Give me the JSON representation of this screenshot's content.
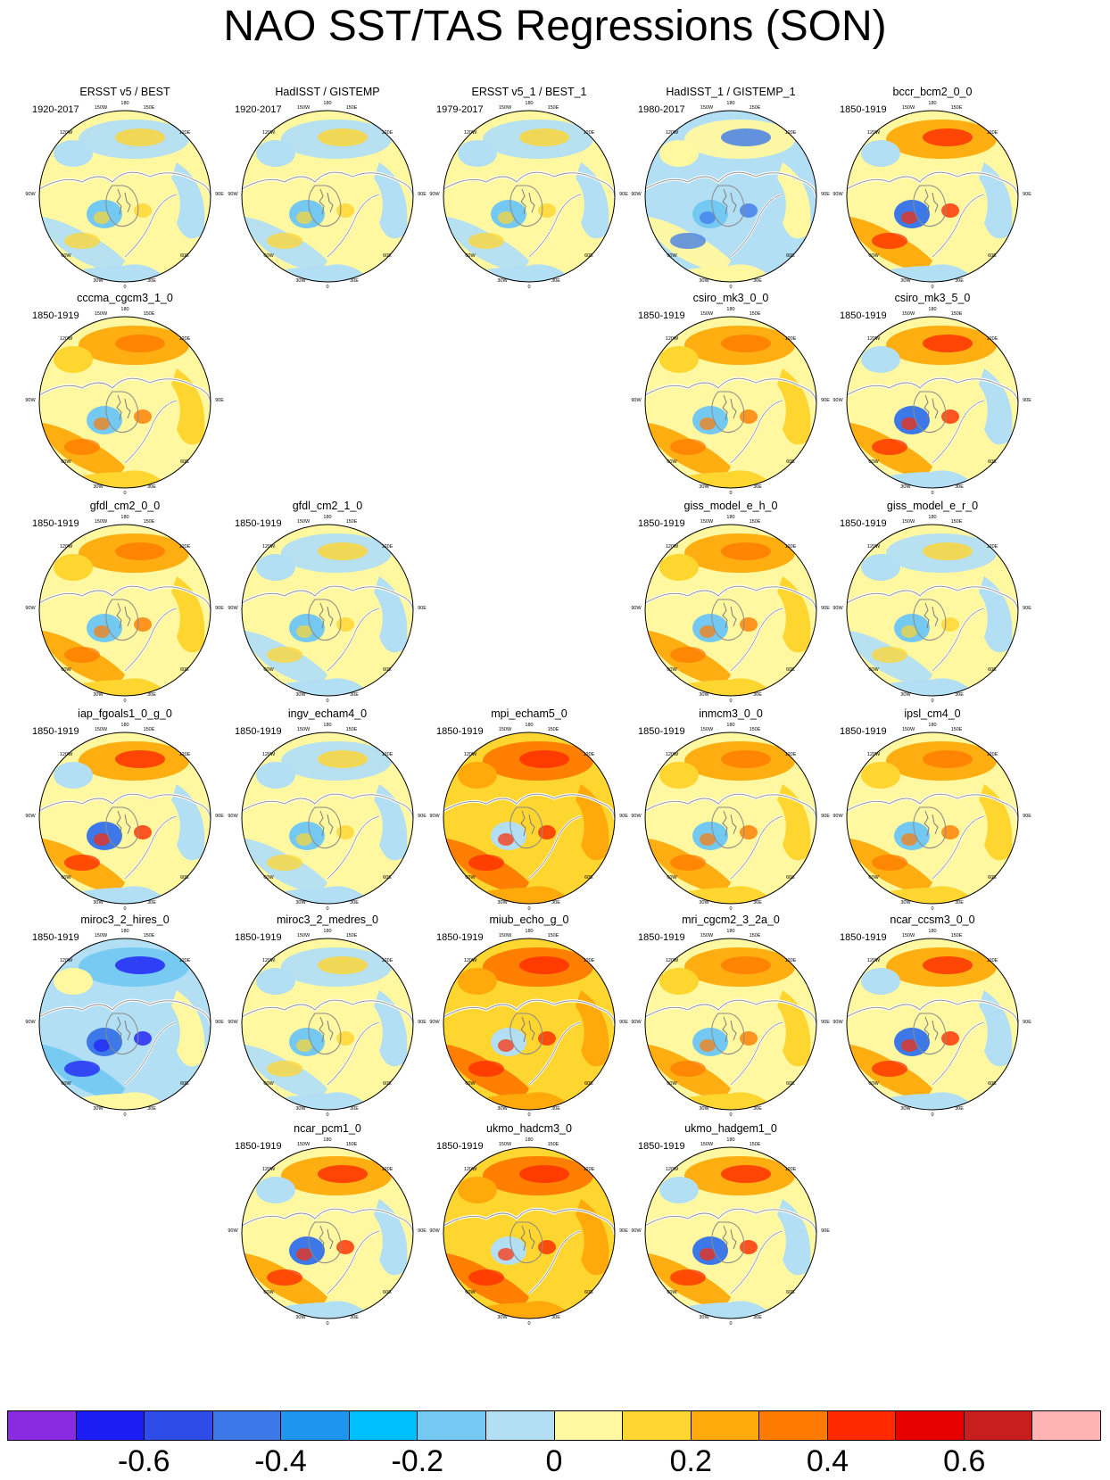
{
  "page": {
    "title": "NAO SST/TAS Regressions (SON)"
  },
  "lon_labels": [
    "180",
    "150W",
    "150E",
    "120W",
    "120E",
    "90W",
    "90E",
    "60W",
    "60E",
    "30W",
    "30E",
    "0"
  ],
  "panels": [
    {
      "title": "ERSST v5 / BEST",
      "period": "1920-2017",
      "row": 0,
      "col": 0,
      "palette": "obs"
    },
    {
      "title": "HadISST / GISTEMP",
      "period": "1920-2017",
      "row": 0,
      "col": 1,
      "palette": "obs"
    },
    {
      "title": "ERSST v5_1 / BEST_1",
      "period": "1979-2017",
      "row": 0,
      "col": 2,
      "palette": "obs"
    },
    {
      "title": "HadISST_1 / GISTEMP_1",
      "period": "1980-2017",
      "row": 0,
      "col": 3,
      "palette": "obs-blue"
    },
    {
      "title": "bccr_bcm2_0_0",
      "period": "1850-1919",
      "row": 0,
      "col": 4,
      "palette": "mixed"
    },
    {
      "title": "cccma_cgcm3_1_0",
      "period": "1850-1919",
      "row": 1,
      "col": 0,
      "palette": "warm"
    },
    {
      "title": "csiro_mk3_0_0",
      "period": "1850-1919",
      "row": 1,
      "col": 3,
      "palette": "warm"
    },
    {
      "title": "csiro_mk3_5_0",
      "period": "1850-1919",
      "row": 1,
      "col": 4,
      "palette": "mixed"
    },
    {
      "title": "gfdl_cm2_0_0",
      "period": "1850-1919",
      "row": 2,
      "col": 0,
      "palette": "warm"
    },
    {
      "title": "gfdl_cm2_1_0",
      "period": "1850-1919",
      "row": 2,
      "col": 1,
      "palette": "obs"
    },
    {
      "title": "giss_model_e_h_0",
      "period": "1850-1919",
      "row": 2,
      "col": 3,
      "palette": "warm"
    },
    {
      "title": "giss_model_e_r_0",
      "period": "1850-1919",
      "row": 2,
      "col": 4,
      "palette": "obs"
    },
    {
      "title": "iap_fgoals1_0_g_0",
      "period": "1850-1919",
      "row": 3,
      "col": 0,
      "palette": "mixed"
    },
    {
      "title": "ingv_echam4_0",
      "period": "1850-1919",
      "row": 3,
      "col": 1,
      "palette": "obs"
    },
    {
      "title": "mpi_echam5_0",
      "period": "1850-1919",
      "row": 3,
      "col": 2,
      "palette": "hot"
    },
    {
      "title": "inmcm3_0_0",
      "period": "1850-1919",
      "row": 3,
      "col": 3,
      "palette": "warm"
    },
    {
      "title": "ipsl_cm4_0",
      "period": "1850-1919",
      "row": 3,
      "col": 4,
      "palette": "warm"
    },
    {
      "title": "miroc3_2_hires_0",
      "period": "1850-1919",
      "row": 4,
      "col": 0,
      "palette": "cold"
    },
    {
      "title": "miroc3_2_medres_0",
      "period": "1850-1919",
      "row": 4,
      "col": 1,
      "palette": "obs"
    },
    {
      "title": "miub_echo_g_0",
      "period": "1850-1919",
      "row": 4,
      "col": 2,
      "palette": "hot"
    },
    {
      "title": "mri_cgcm2_3_2a_0",
      "period": "1850-1919",
      "row": 4,
      "col": 3,
      "palette": "warm"
    },
    {
      "title": "ncar_ccsm3_0_0",
      "period": "1850-1919",
      "row": 4,
      "col": 4,
      "palette": "mixed"
    },
    {
      "title": "ncar_pcm1_0",
      "period": "1850-1919",
      "row": 5,
      "col": 1,
      "palette": "mixed"
    },
    {
      "title": "ukmo_hadcm3_0",
      "period": "1850-1919",
      "row": 5,
      "col": 2,
      "palette": "hot"
    },
    {
      "title": "ukmo_hadgem1_0",
      "period": "1850-1919",
      "row": 5,
      "col": 3,
      "palette": "mixed"
    }
  ],
  "colorbar": {
    "colors": [
      "#8a2be2",
      "#1c1cf5",
      "#2f4ce8",
      "#3c78e8",
      "#1e96f0",
      "#00bfff",
      "#74c9f2",
      "#b3dff4",
      "#fff8a0",
      "#ffd530",
      "#ffaa0a",
      "#ff7a00",
      "#ff2a00",
      "#e60000",
      "#c81e1e",
      "#ffb3b3"
    ],
    "tick_labels": [
      "-0.6",
      "-0.4",
      "-0.2",
      "0",
      "0.2",
      "0.4",
      "0.6"
    ]
  },
  "palettes": {
    "obs": {
      "base": "#fff8a0",
      "a": "#b3dff4",
      "b": "#b3dff4",
      "c": "#74c9f2",
      "d": "#ffd530"
    },
    "obs-blue": {
      "base": "#b3dff4",
      "a": "#fff8a0",
      "b": "#fff8a0",
      "c": "#74c9f2",
      "d": "#3c78e8"
    },
    "mixed": {
      "base": "#fff8a0",
      "a": "#ffaa0a",
      "b": "#b3dff4",
      "c": "#3c78e8",
      "d": "#ff2a00"
    },
    "warm": {
      "base": "#fff8a0",
      "a": "#ffaa0a",
      "b": "#ffd530",
      "c": "#74c9f2",
      "d": "#ff7a00"
    },
    "hot": {
      "base": "#ffd530",
      "a": "#ff7a00",
      "b": "#ffaa0a",
      "c": "#b3dff4",
      "d": "#ff2a00"
    },
    "cold": {
      "base": "#b3dff4",
      "a": "#74c9f2",
      "b": "#fff8a0",
      "c": "#3c78e8",
      "d": "#1c1cf5"
    }
  }
}
